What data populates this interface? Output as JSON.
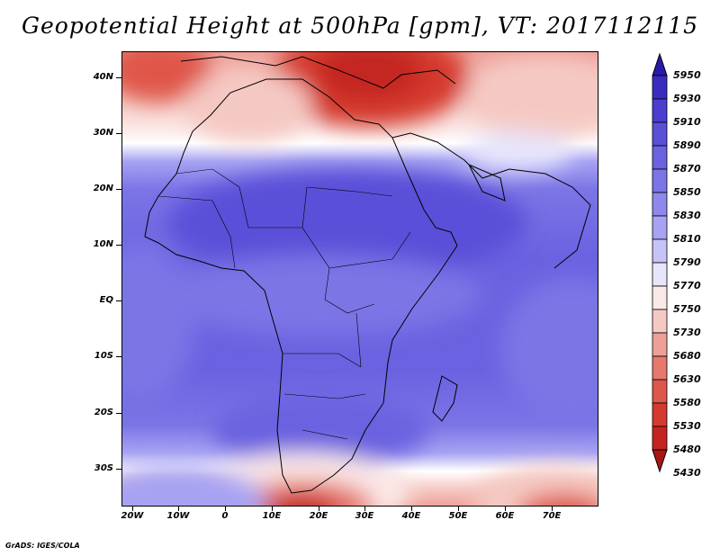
{
  "title": "Geopotential Height at 500hPa [gpm], VT: 2017112115",
  "credit": "GrADS: IGES/COLA",
  "map": {
    "lat_labels": [
      "40N",
      "30N",
      "20N",
      "10N",
      "EQ",
      "10S",
      "20S",
      "30S"
    ],
    "lon_labels": [
      "20W",
      "10W",
      "0",
      "10E",
      "20E",
      "30E",
      "40E",
      "50E",
      "60E",
      "70E"
    ]
  },
  "colorbar": {
    "levels": [
      "5950",
      "5930",
      "5910",
      "5890",
      "5870",
      "5850",
      "5830",
      "5810",
      "5790",
      "5770",
      "5750",
      "5730",
      "5680",
      "5630",
      "5580",
      "5530",
      "5480",
      "5430"
    ],
    "colors": [
      "#2a1aa8",
      "#3a2bc0",
      "#4a3dcf",
      "#5a50d8",
      "#6a62e0",
      "#7c75e6",
      "#8e88ec",
      "#a7a3f2",
      "#c5c3f7",
      "#e6e5fc",
      "#fbe9e7",
      "#f5c9c3",
      "#ee9f97",
      "#e7786e",
      "#df564a",
      "#d53a2e",
      "#c42520",
      "#a81614"
    ]
  }
}
